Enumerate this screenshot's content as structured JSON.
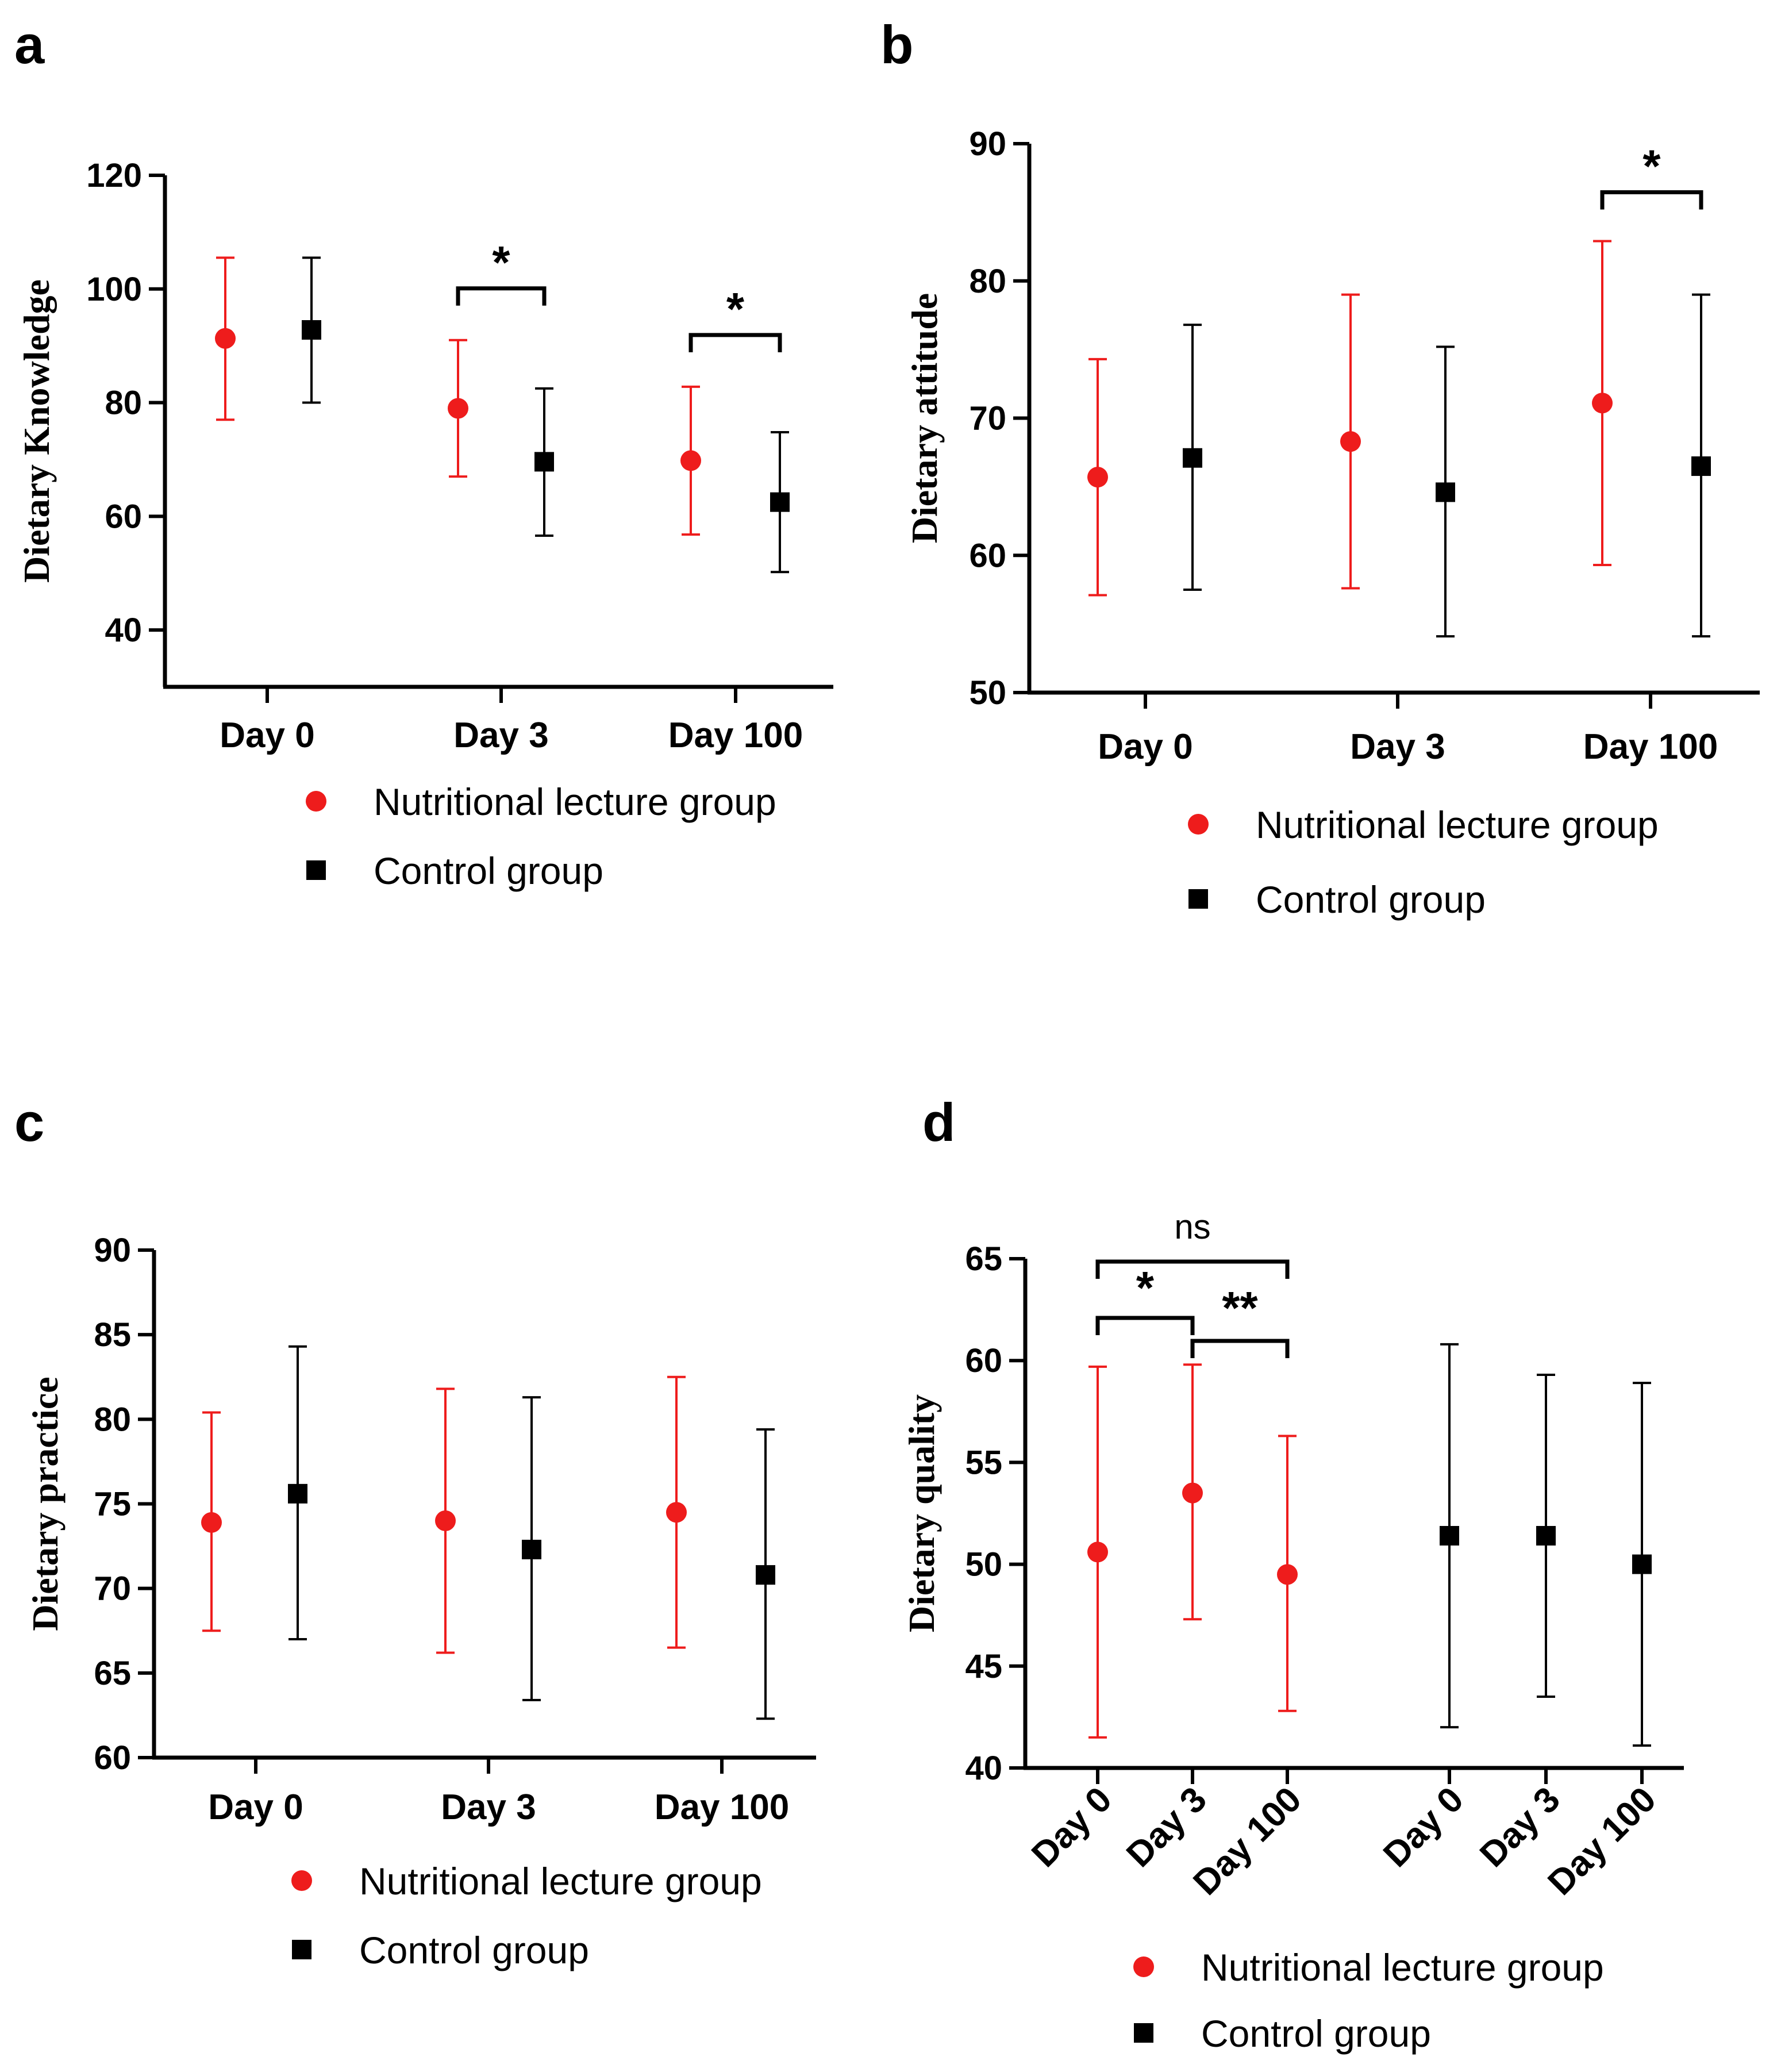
{
  "colors": {
    "lecture": "#ee1c1c",
    "control": "#000000"
  },
  "legend": {
    "lecture_label": "Nutritional lecture group",
    "control_label": "Control group"
  },
  "chart_data": [
    {
      "panel": "a",
      "type": "scatter",
      "ylabel": "Dietary Knowledge",
      "ylim": [
        30,
        120
      ],
      "yticks": [
        40,
        60,
        80,
        100,
        120
      ],
      "categories": [
        "Day 0",
        "Day 3",
        "Day 100"
      ],
      "series": [
        {
          "name": "Nutritional lecture group",
          "mean": [
            91.3,
            79.0,
            69.8
          ],
          "lower": [
            77.0,
            67.0,
            56.8
          ],
          "upper": [
            105.5,
            91.0,
            82.8
          ]
        },
        {
          "name": "Control group",
          "mean": [
            92.8,
            69.6,
            62.5
          ],
          "lower": [
            80.0,
            56.6,
            50.2
          ],
          "upper": [
            105.5,
            82.5,
            74.8
          ]
        }
      ],
      "significance": [
        {
          "label": "*",
          "from": [
            1,
            0
          ],
          "to": [
            1,
            1
          ]
        },
        {
          "label": "*",
          "from": [
            2,
            0
          ],
          "to": [
            2,
            1
          ]
        }
      ]
    },
    {
      "panel": "b",
      "type": "scatter",
      "ylabel": "Dietary attitude",
      "ylim": [
        50,
        90
      ],
      "yticks": [
        50,
        60,
        70,
        80,
        90
      ],
      "categories": [
        "Day 0",
        "Day 3",
        "Day 100"
      ],
      "series": [
        {
          "name": "Nutritional lecture group",
          "mean": [
            65.7,
            68.3,
            71.1
          ],
          "lower": [
            57.1,
            57.6,
            59.3
          ],
          "upper": [
            74.3,
            79.0,
            82.9
          ]
        },
        {
          "name": "Control group",
          "mean": [
            67.1,
            64.6,
            66.5
          ],
          "lower": [
            57.5,
            54.1,
            54.1
          ],
          "upper": [
            76.8,
            75.2,
            79.0
          ]
        }
      ],
      "significance": [
        {
          "label": "*",
          "from": [
            2,
            0
          ],
          "to": [
            2,
            1
          ]
        }
      ]
    },
    {
      "panel": "c",
      "type": "scatter",
      "ylabel": "Dietary practice",
      "ylim": [
        60,
        90
      ],
      "yticks": [
        60,
        65,
        70,
        75,
        80,
        85,
        90
      ],
      "categories": [
        "Day 0",
        "Day 3",
        "Day 100"
      ],
      "series": [
        {
          "name": "Nutritional lecture group",
          "mean": [
            73.9,
            74.0,
            74.5
          ],
          "lower": [
            67.5,
            66.2,
            66.5
          ],
          "upper": [
            80.4,
            81.8,
            82.5
          ]
        },
        {
          "name": "Control group",
          "mean": [
            75.6,
            72.3,
            70.8
          ],
          "lower": [
            67.0,
            63.4,
            62.3
          ],
          "upper": [
            84.3,
            81.3,
            79.4
          ]
        }
      ],
      "significance": []
    },
    {
      "panel": "d",
      "type": "scatter",
      "ylabel": "Dietary quality",
      "ylim": [
        40,
        65
      ],
      "yticks": [
        40,
        45,
        50,
        55,
        60,
        65
      ],
      "categories": [
        "Day 0",
        "Day 3",
        "Day 100",
        "Day 0",
        "Day 3",
        "Day 100"
      ],
      "series": [
        {
          "name": "Nutritional lecture group",
          "points": [
            0,
            1,
            2
          ],
          "mean": [
            50.6,
            53.5,
            49.5
          ],
          "lower": [
            41.5,
            47.3,
            42.8
          ],
          "upper": [
            59.7,
            59.8,
            56.3
          ]
        },
        {
          "name": "Control group",
          "points": [
            3,
            4,
            5
          ],
          "mean": [
            51.4,
            51.4,
            50.0
          ],
          "lower": [
            42.0,
            43.5,
            41.1
          ],
          "upper": [
            60.8,
            59.3,
            58.9
          ]
        }
      ],
      "significance": [
        {
          "label": "ns",
          "from": 0,
          "to": 2
        },
        {
          "label": "*",
          "from": 0,
          "to": 1
        },
        {
          "label": "**",
          "from": 1,
          "to": 2
        }
      ]
    }
  ]
}
